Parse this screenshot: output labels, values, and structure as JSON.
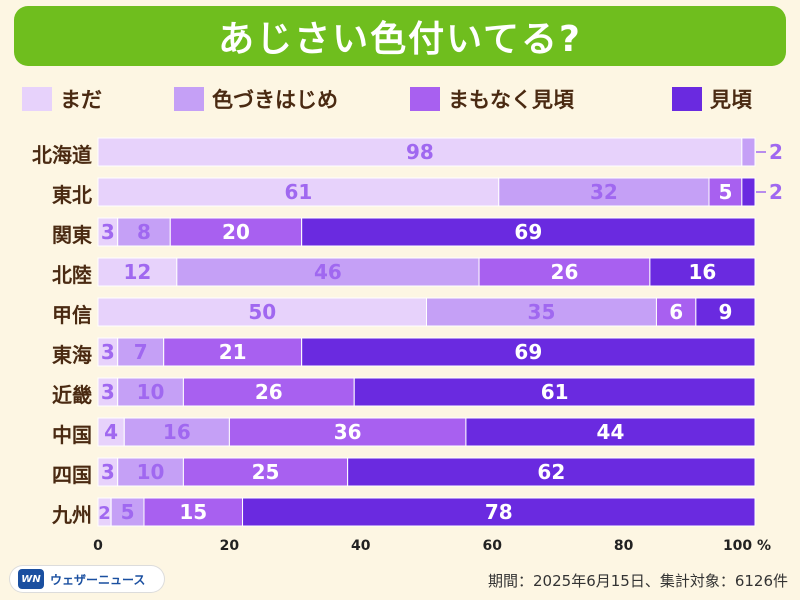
{
  "title": "あじさい色付いてる?",
  "legend": [
    {
      "label": "まだ",
      "color": "#e7d2fb"
    },
    {
      "label": "色づきはじめ",
      "color": "#c5a0f6"
    },
    {
      "label": "まもなく見頃",
      "color": "#a860f0"
    },
    {
      "label": "見頃",
      "color": "#6a2ae0"
    }
  ],
  "footer": {
    "logo_mark": "WN",
    "logo_text": "ウェザーニュース",
    "note": "期間：2025年6月15日、集計対象：6126件"
  },
  "chart_data": {
    "type": "bar",
    "orientation": "horizontal",
    "stacked": true,
    "categories": [
      "北海道",
      "東北",
      "関東",
      "北陸",
      "甲信",
      "東海",
      "近畿",
      "中国",
      "四国",
      "九州"
    ],
    "series": [
      {
        "name": "まだ",
        "values": [
          98,
          61,
          3,
          12,
          50,
          3,
          3,
          4,
          3,
          2
        ]
      },
      {
        "name": "色づきはじめ",
        "values": [
          2,
          32,
          8,
          46,
          35,
          7,
          10,
          16,
          10,
          5
        ]
      },
      {
        "name": "まもなく見頃",
        "values": [
          0,
          5,
          20,
          26,
          6,
          21,
          26,
          36,
          25,
          15
        ]
      },
      {
        "name": "見頃",
        "values": [
          0,
          2,
          69,
          16,
          9,
          69,
          61,
          44,
          62,
          78
        ]
      }
    ],
    "xlim": [
      0,
      100
    ],
    "x_ticks": [
      "0",
      "20",
      "40",
      "60",
      "80",
      "100 %"
    ],
    "grid": false
  }
}
